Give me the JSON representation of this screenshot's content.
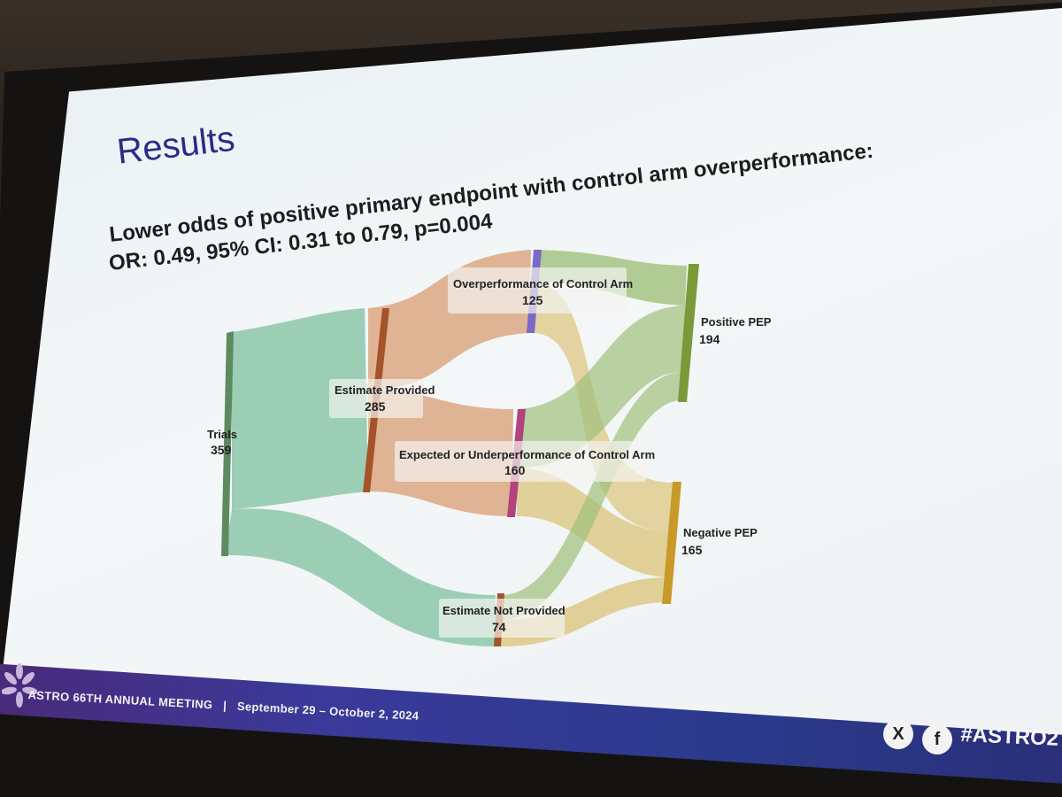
{
  "slide": {
    "title": "Results",
    "subtitle_line1": "Lower odds of positive primary endpoint with control arm overperformance:",
    "subtitle_line2": "OR: 0.49, 95% CI: 0.31 to 0.79, p=0.004"
  },
  "sankey": {
    "nodes": [
      {
        "id": "trials",
        "label": "Trials",
        "value": "359",
        "color": "#6a9a72"
      },
      {
        "id": "estimate_provided",
        "label": "Estimate Provided",
        "value": "285",
        "color": "#a4532a"
      },
      {
        "id": "estimate_not_provided",
        "label": "Estimate Not Provided",
        "value": "74",
        "color": "#a4532a"
      },
      {
        "id": "overperformance",
        "label": "Overperformance of Control Arm",
        "value": "125",
        "color": "#7a6ac8"
      },
      {
        "id": "expected_under",
        "label": "Expected or Underperformance of Control Arm",
        "value": "160",
        "color": "#b2437c"
      },
      {
        "id": "positive_pep",
        "label": "Positive PEP",
        "value": "194",
        "color": "#7a9a3a"
      },
      {
        "id": "negative_pep",
        "label": "Negative PEP",
        "value": "165",
        "color": "#c99a2a"
      }
    ],
    "links": [
      {
        "source": "trials",
        "target": "estimate_provided",
        "value": 285,
        "color": "#7fc0a0"
      },
      {
        "source": "trials",
        "target": "estimate_not_provided",
        "value": 74,
        "color": "#7fc0a0"
      },
      {
        "source": "estimate_provided",
        "target": "overperformance",
        "value": 125,
        "color": "#d9a27a"
      },
      {
        "source": "estimate_provided",
        "target": "expected_under",
        "value": 160,
        "color": "#d9a27a"
      },
      {
        "source": "overperformance",
        "target": "positive_pep",
        "color": "#9fc07a"
      },
      {
        "source": "overperformance",
        "target": "negative_pep",
        "color": "#d8c070"
      },
      {
        "source": "expected_under",
        "target": "positive_pep",
        "color": "#9fc07a"
      },
      {
        "source": "expected_under",
        "target": "negative_pep",
        "color": "#d8c070"
      },
      {
        "source": "estimate_not_provided",
        "target": "positive_pep",
        "color": "#9fc07a"
      },
      {
        "source": "estimate_not_provided",
        "target": "negative_pep",
        "color": "#d8c070"
      }
    ]
  },
  "footer": {
    "meeting": "ASTRO 66TH ANNUAL MEETING",
    "separator": "|",
    "dates": "September 29 – October 2, 2024",
    "hashtag": "#ASTRO2",
    "x_icon": "X",
    "fb_icon": "f"
  },
  "colors": {
    "title": "#2a2c86",
    "footer_bar": "#3a3a9a"
  }
}
